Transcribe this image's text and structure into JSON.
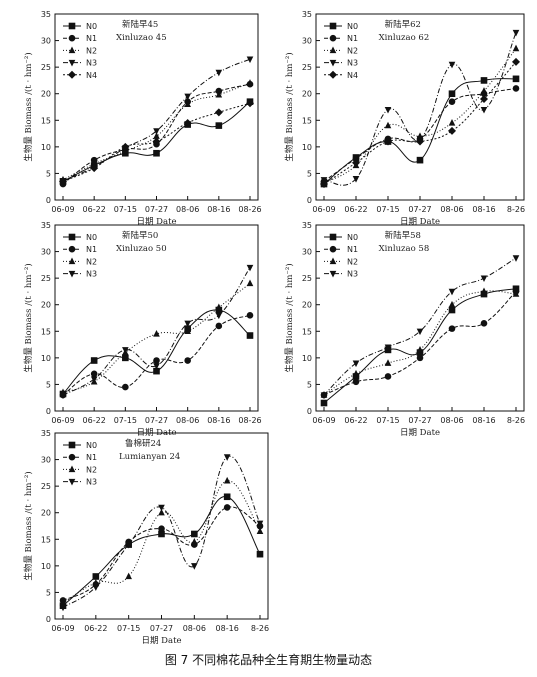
{
  "caption": "图 7 不同棉花品种全生育期生物量动态",
  "series_styles": {
    "N0": {
      "marker": "square",
      "dash": ""
    },
    "N1": {
      "marker": "circle",
      "dash": "4,2"
    },
    "N2": {
      "marker": "triangle-up",
      "dash": "1,2"
    },
    "N3": {
      "marker": "triangle-down",
      "dash": "5,2,1,2"
    },
    "N4": {
      "marker": "diamond",
      "dash": "2,2"
    }
  },
  "chart_data": [
    {
      "type": "line",
      "title": "新陆早45",
      "subtitle": "Xinluzao 45",
      "xlabel": "日期 Date",
      "ylabel": "生物量 Biomass /(t · hm⁻²)",
      "categories": [
        "06-09",
        "06-22",
        "07-15",
        "07-27",
        "08-06",
        "08-16",
        "08-26"
      ],
      "ylim": [
        0,
        35
      ],
      "yticks": [
        0,
        5,
        10,
        15,
        20,
        25,
        30,
        35
      ],
      "legend": "top-left",
      "series": [
        {
          "name": "N0",
          "values": [
            3.5,
            6.5,
            8.8,
            8.8,
            14.2,
            14.0,
            18.5
          ]
        },
        {
          "name": "N1",
          "values": [
            3.0,
            7.5,
            9.5,
            10.5,
            18.5,
            20.5,
            21.8
          ]
        },
        {
          "name": "N2",
          "values": [
            3.8,
            6.8,
            9.2,
            12.0,
            18.0,
            19.8,
            22.0
          ]
        },
        {
          "name": "N3",
          "values": [
            3.6,
            6.2,
            9.8,
            13.0,
            19.5,
            24.0,
            26.5
          ]
        },
        {
          "name": "N4",
          "values": [
            3.5,
            6.0,
            10.0,
            11.0,
            14.5,
            16.5,
            18.2
          ]
        }
      ]
    },
    {
      "type": "line",
      "title": "新陆早62",
      "subtitle": "Xinluzao 62",
      "xlabel": "日期 Date",
      "ylabel": "生物量 Biomass /(t · hm⁻²)",
      "categories": [
        "06-09",
        "06-22",
        "07-15",
        "07-27",
        "08-06",
        "08-16",
        "8-26"
      ],
      "ylim": [
        0,
        35
      ],
      "yticks": [
        0,
        5,
        10,
        15,
        20,
        25,
        30,
        35
      ],
      "legend": "top-left",
      "series": [
        {
          "name": "N0",
          "values": [
            3.0,
            8.0,
            11.0,
            7.5,
            20.0,
            22.5,
            22.8
          ]
        },
        {
          "name": "N1",
          "values": [
            3.5,
            7.8,
            11.5,
            11.5,
            18.5,
            20.0,
            21.0
          ]
        },
        {
          "name": "N2",
          "values": [
            3.2,
            6.5,
            14.0,
            12.0,
            14.5,
            20.5,
            28.5
          ]
        },
        {
          "name": "N3",
          "values": [
            3.8,
            4.0,
            17.0,
            11.5,
            25.5,
            17.0,
            31.5
          ]
        },
        {
          "name": "N4",
          "values": [
            3.0,
            7.0,
            11.0,
            11.0,
            13.0,
            19.0,
            26.0
          ]
        }
      ]
    },
    {
      "type": "line",
      "title": "新陆早50",
      "subtitle": "Xinluzao 50",
      "xlabel": "日期 Date",
      "ylabel": "生物量 Biomass /(t · hm⁻²)",
      "categories": [
        "06-09",
        "06-22",
        "07-15",
        "07-27",
        "08-06",
        "08-16",
        "08-26"
      ],
      "ylim": [
        0,
        35
      ],
      "yticks": [
        0,
        5,
        10,
        15,
        20,
        25,
        30,
        35
      ],
      "legend": "top-left",
      "series": [
        {
          "name": "N0",
          "values": [
            3.2,
            9.5,
            10.0,
            7.5,
            15.5,
            19.0,
            14.2
          ]
        },
        {
          "name": "N1",
          "values": [
            3.0,
            7.0,
            4.5,
            9.5,
            9.5,
            16.0,
            18.0
          ]
        },
        {
          "name": "N2",
          "values": [
            3.5,
            5.5,
            11.0,
            14.5,
            15.0,
            19.5,
            24.0
          ]
        },
        {
          "name": "N3",
          "values": [
            3.0,
            6.0,
            11.5,
            8.5,
            16.5,
            18.0,
            27.0
          ]
        }
      ]
    },
    {
      "type": "line",
      "title": "新陆早58",
      "subtitle": "Xinluzao 58",
      "xlabel": "日期 Date",
      "ylabel": "生物量 Biomass /(t · hm⁻²)",
      "categories": [
        "06-09",
        "06-22",
        "07-15",
        "07-27",
        "08-06",
        "08-16",
        "8-26"
      ],
      "ylim": [
        0,
        35
      ],
      "yticks": [
        0,
        5,
        10,
        15,
        20,
        25,
        30,
        35
      ],
      "legend": "top-left",
      "series": [
        {
          "name": "N0",
          "values": [
            1.5,
            6.5,
            11.5,
            11.0,
            19.0,
            22.0,
            23.0
          ]
        },
        {
          "name": "N1",
          "values": [
            3.0,
            5.5,
            6.5,
            10.0,
            15.5,
            16.5,
            22.5
          ]
        },
        {
          "name": "N2",
          "values": [
            3.0,
            7.0,
            9.0,
            11.5,
            20.0,
            22.5,
            22.0
          ]
        },
        {
          "name": "N3",
          "values": [
            3.0,
            9.0,
            12.0,
            15.0,
            22.5,
            25.0,
            28.8
          ]
        }
      ]
    },
    {
      "type": "line",
      "title": "鲁棉研24",
      "subtitle": "Lumianyan 24",
      "xlabel": "日期 Date",
      "ylabel": "生物量 Biomass /(t · hm⁻²)",
      "categories": [
        "06-09",
        "06-22",
        "07-15",
        "07-27",
        "08-06",
        "08-16",
        "8-26"
      ],
      "ylim": [
        0,
        35
      ],
      "yticks": [
        0,
        5,
        10,
        15,
        20,
        25,
        30,
        35
      ],
      "legend": "top-left",
      "series": [
        {
          "name": "N0",
          "values": [
            2.5,
            8.0,
            14.0,
            16.0,
            16.0,
            23.0,
            12.2
          ]
        },
        {
          "name": "N1",
          "values": [
            3.5,
            6.5,
            14.5,
            17.0,
            14.0,
            21.0,
            17.5
          ]
        },
        {
          "name": "N2",
          "values": [
            3.0,
            6.8,
            8.0,
            20.0,
            14.5,
            26.0,
            16.5
          ]
        },
        {
          "name": "N3",
          "values": [
            2.2,
            6.0,
            14.0,
            21.0,
            10.0,
            30.5,
            18.0
          ]
        }
      ]
    }
  ]
}
